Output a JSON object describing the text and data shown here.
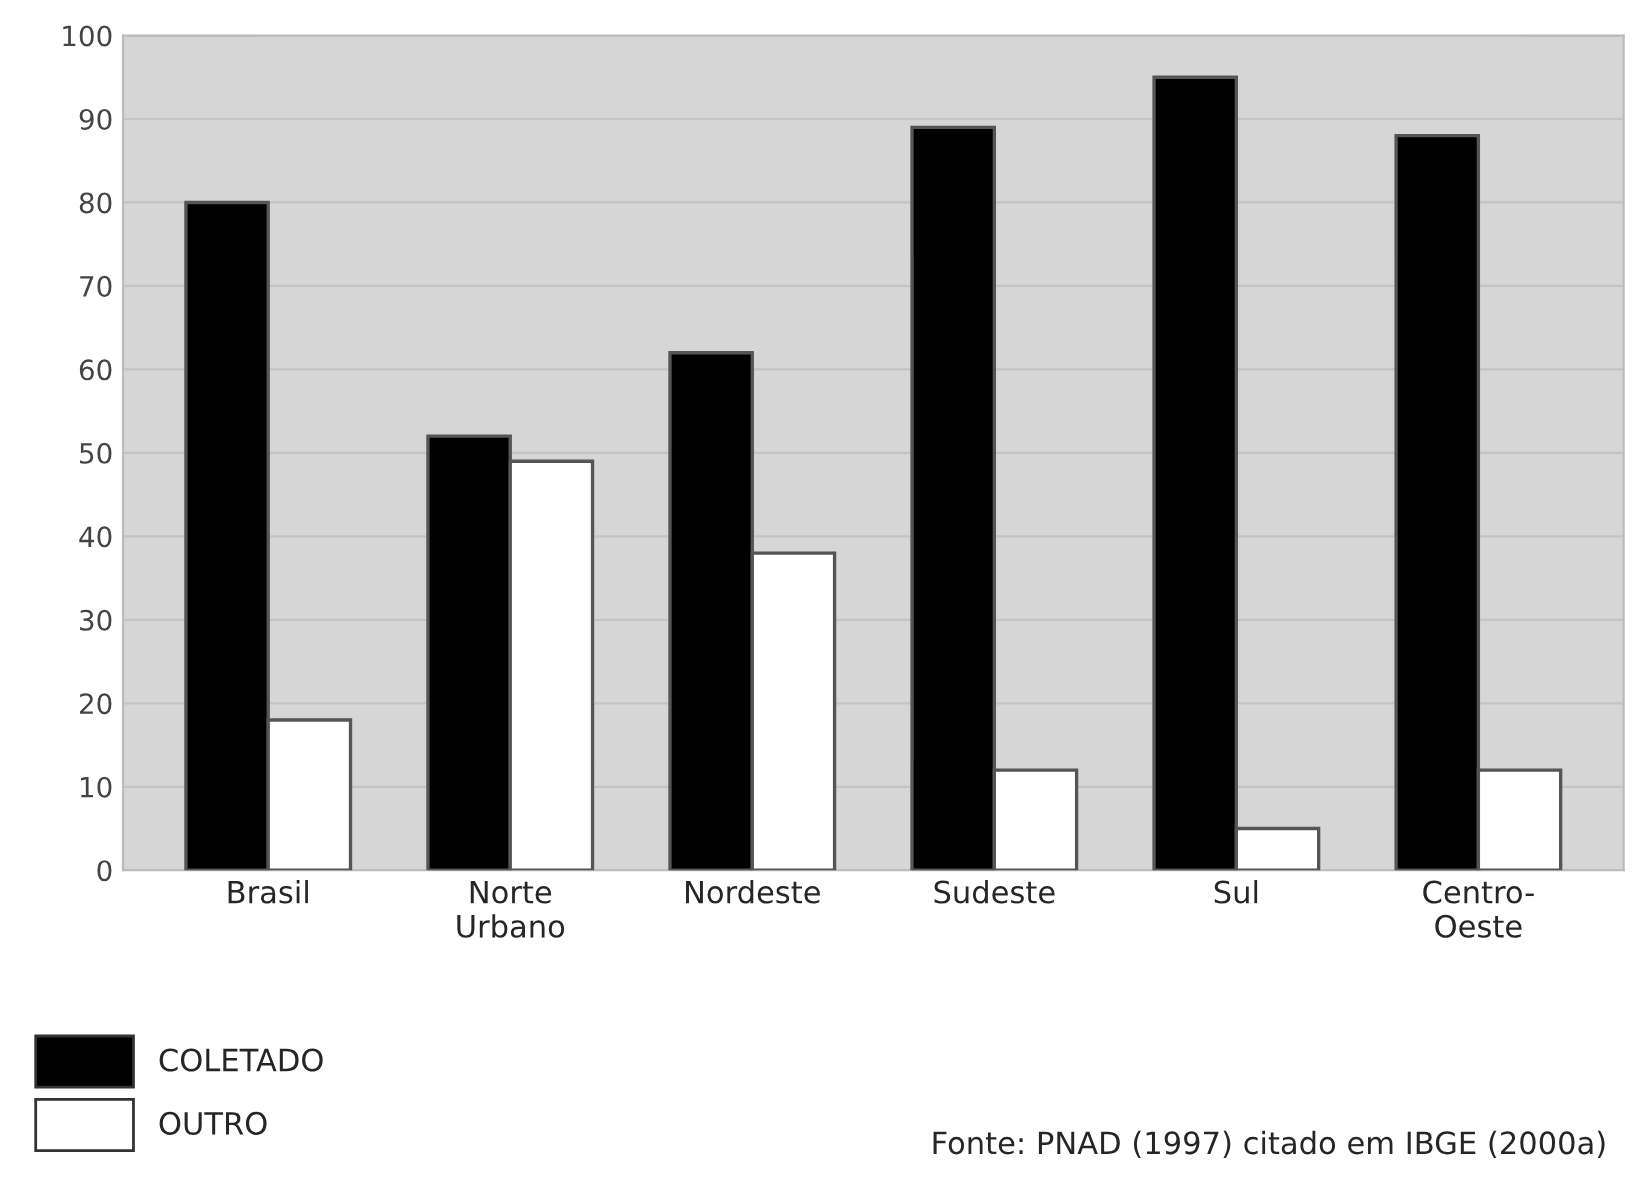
{
  "chart_data": {
    "type": "bar",
    "categories": [
      "Brasil",
      "Norte\nUrbano",
      "Nordeste",
      "Sudeste",
      "Sul",
      "Centro-\nOeste"
    ],
    "series": [
      {
        "name": "COLETADO",
        "color": "#000000",
        "values": [
          80,
          52,
          62,
          89,
          95,
          88
        ]
      },
      {
        "name": "OUTRO",
        "color": "#ffffff",
        "values": [
          18,
          49,
          38,
          12,
          5,
          12
        ]
      }
    ],
    "ylim": [
      0,
      100
    ],
    "yticks": [
      0,
      10,
      20,
      30,
      40,
      50,
      60,
      70,
      80,
      90,
      100
    ],
    "grid": "y",
    "legend": "bottom left",
    "annotations": [
      "Fonte: PNAD (1997) citado em IBGE (2000a)"
    ]
  }
}
